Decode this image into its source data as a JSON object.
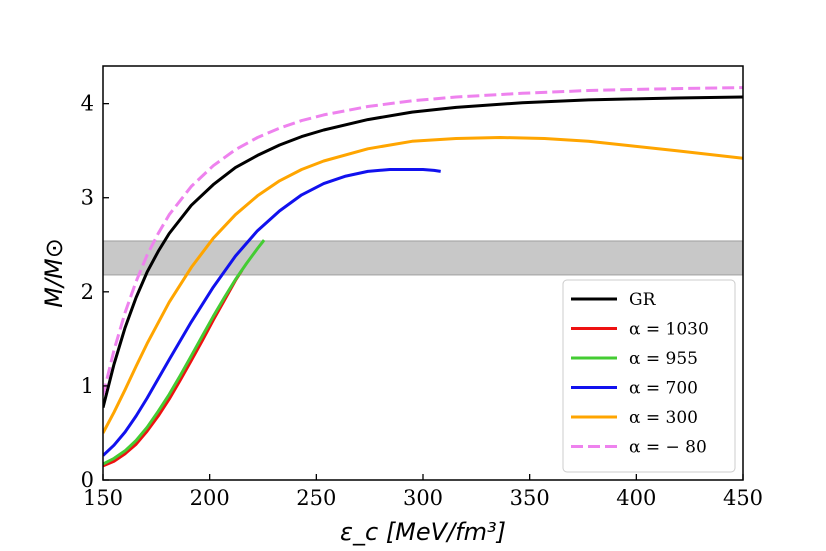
{
  "chart_data": {
    "type": "line",
    "xlabel": "ε_c [MeV/fm³]",
    "ylabel": "M/M⊙",
    "xlim": [
      160,
      450
    ],
    "ylim": [
      0,
      4.4
    ],
    "x_ticks": [
      150,
      200,
      250,
      300,
      350,
      400,
      450
    ],
    "y_ticks": [
      0,
      1,
      2,
      3,
      4
    ],
    "band": {
      "y_min": 2.18,
      "y_max": 2.54,
      "color": "#c8c8c8"
    },
    "legend_position": "lower-right",
    "series": [
      {
        "name": "GR",
        "color": "#000000",
        "dash": false,
        "x": [
          160,
          165,
          170,
          175,
          180,
          185,
          190,
          200,
          210,
          220,
          230,
          240,
          250,
          260,
          280,
          300,
          320,
          350,
          380,
          400,
          420,
          450
        ],
        "y": [
          0.77,
          1.23,
          1.62,
          1.94,
          2.21,
          2.43,
          2.62,
          2.92,
          3.14,
          3.32,
          3.45,
          3.56,
          3.65,
          3.72,
          3.83,
          3.91,
          3.96,
          4.01,
          4.04,
          4.05,
          4.06,
          4.07
        ]
      },
      {
        "name": "α = 1030",
        "color": "#ee1111",
        "dash": false,
        "x": [
          160,
          165,
          170,
          175,
          180,
          185,
          190,
          195,
          200,
          205,
          210,
          215,
          220,
          223
        ],
        "y": [
          0.15,
          0.2,
          0.28,
          0.38,
          0.52,
          0.68,
          0.86,
          1.06,
          1.27,
          1.48,
          1.7,
          1.91,
          2.12,
          2.23
        ]
      },
      {
        "name": "α = 955",
        "color": "#44cc33",
        "dash": false,
        "x": [
          160,
          165,
          170,
          175,
          180,
          185,
          190,
          195,
          200,
          205,
          210,
          215,
          220,
          225,
          230,
          233
        ],
        "y": [
          0.17,
          0.23,
          0.31,
          0.42,
          0.56,
          0.73,
          0.91,
          1.11,
          1.32,
          1.53,
          1.74,
          1.94,
          2.13,
          2.3,
          2.46,
          2.55
        ]
      },
      {
        "name": "α = 700",
        "color": "#1111ee",
        "dash": false,
        "x": [
          160,
          165,
          170,
          175,
          180,
          190,
          200,
          210,
          220,
          230,
          240,
          250,
          260,
          270,
          280,
          290,
          300,
          305,
          310,
          313
        ],
        "y": [
          0.26,
          0.37,
          0.51,
          0.68,
          0.87,
          1.28,
          1.68,
          2.05,
          2.38,
          2.65,
          2.86,
          3.03,
          3.15,
          3.23,
          3.28,
          3.3,
          3.3,
          3.3,
          3.29,
          3.28
        ]
      },
      {
        "name": "α = 300",
        "color": "#ffa500",
        "dash": false,
        "x": [
          160,
          165,
          170,
          175,
          180,
          190,
          200,
          210,
          220,
          230,
          240,
          250,
          260,
          280,
          300,
          320,
          340,
          360,
          380,
          400,
          420,
          450
        ],
        "y": [
          0.5,
          0.72,
          0.96,
          1.21,
          1.45,
          1.89,
          2.26,
          2.57,
          2.82,
          3.02,
          3.18,
          3.3,
          3.39,
          3.52,
          3.6,
          3.63,
          3.64,
          3.63,
          3.6,
          3.55,
          3.5,
          3.42
        ]
      },
      {
        "name": "α = − 80",
        "color": "#ee82ee",
        "dash": true,
        "x": [
          160,
          165,
          170,
          175,
          180,
          185,
          190,
          200,
          210,
          220,
          230,
          240,
          250,
          260,
          280,
          300,
          320,
          350,
          380,
          400,
          420,
          450
        ],
        "y": [
          0.9,
          1.38,
          1.78,
          2.11,
          2.39,
          2.62,
          2.82,
          3.12,
          3.34,
          3.51,
          3.64,
          3.74,
          3.82,
          3.88,
          3.97,
          4.03,
          4.07,
          4.11,
          4.14,
          4.15,
          4.16,
          4.17
        ]
      }
    ]
  }
}
